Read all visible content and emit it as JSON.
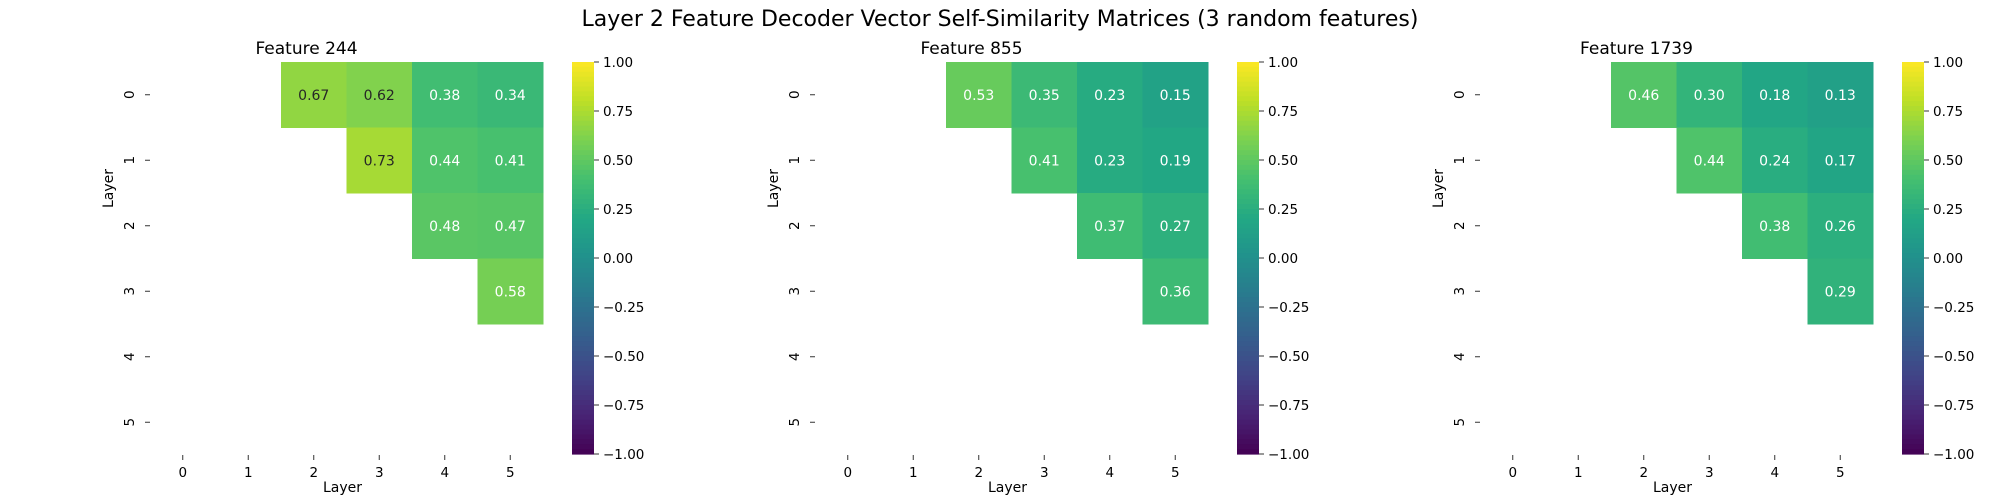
{
  "figure": {
    "title": "Layer 2 Feature Decoder Vector Self-Similarity Matrices (3 random features)"
  },
  "colors": {
    "colormap": "viridis",
    "text_dark": "#262626",
    "text_light": "#ffffff"
  },
  "chart_data": [
    {
      "type": "heatmap",
      "title": "Feature 244",
      "xlabel": "Layer",
      "ylabel": "Layer",
      "x_ticks": [
        "0",
        "1",
        "2",
        "3",
        "4",
        "5"
      ],
      "y_ticks": [
        "0",
        "1",
        "2",
        "3",
        "4",
        "5"
      ],
      "mask": "lower-triangle-and-diagonal",
      "vmin": -1.0,
      "vmax": 1.0,
      "colorbar_ticks": [
        "1.00",
        "0.75",
        "0.50",
        "0.25",
        "0.00",
        "−0.25",
        "−0.50",
        "−0.75",
        "−1.00"
      ],
      "matrix": [
        [
          null,
          null,
          0.67,
          0.62,
          0.38,
          0.34
        ],
        [
          null,
          null,
          null,
          0.73,
          0.44,
          0.41
        ],
        [
          null,
          null,
          null,
          null,
          0.48,
          0.47
        ],
        [
          null,
          null,
          null,
          null,
          null,
          0.58
        ],
        [
          null,
          null,
          null,
          null,
          null,
          null
        ],
        [
          null,
          null,
          null,
          null,
          null,
          null
        ]
      ],
      "labels": [
        [
          null,
          null,
          "0.67",
          "0.62",
          "0.38",
          "0.34"
        ],
        [
          null,
          null,
          null,
          "0.73",
          "0.44",
          "0.41"
        ],
        [
          null,
          null,
          null,
          null,
          "0.48",
          "0.47"
        ],
        [
          null,
          null,
          null,
          null,
          null,
          "0.58"
        ],
        [
          null,
          null,
          null,
          null,
          null,
          null
        ],
        [
          null,
          null,
          null,
          null,
          null,
          null
        ]
      ]
    },
    {
      "type": "heatmap",
      "title": "Feature 855",
      "xlabel": "Layer",
      "ylabel": "Layer",
      "x_ticks": [
        "0",
        "1",
        "2",
        "3",
        "4",
        "5"
      ],
      "y_ticks": [
        "0",
        "1",
        "2",
        "3",
        "4",
        "5"
      ],
      "mask": "lower-triangle-and-diagonal",
      "vmin": -1.0,
      "vmax": 1.0,
      "colorbar_ticks": [
        "1.00",
        "0.75",
        "0.50",
        "0.25",
        "0.00",
        "−0.25",
        "−0.50",
        "−0.75",
        "−1.00"
      ],
      "matrix": [
        [
          null,
          null,
          0.53,
          0.35,
          0.23,
          0.15
        ],
        [
          null,
          null,
          null,
          0.41,
          0.23,
          0.19
        ],
        [
          null,
          null,
          null,
          null,
          0.37,
          0.27
        ],
        [
          null,
          null,
          null,
          null,
          null,
          0.36
        ],
        [
          null,
          null,
          null,
          null,
          null,
          null
        ],
        [
          null,
          null,
          null,
          null,
          null,
          null
        ]
      ],
      "labels": [
        [
          null,
          null,
          "0.53",
          "0.35",
          "0.23",
          "0.15"
        ],
        [
          null,
          null,
          null,
          "0.41",
          "0.23",
          "0.19"
        ],
        [
          null,
          null,
          null,
          null,
          "0.37",
          "0.27"
        ],
        [
          null,
          null,
          null,
          null,
          null,
          "0.36"
        ],
        [
          null,
          null,
          null,
          null,
          null,
          null
        ],
        [
          null,
          null,
          null,
          null,
          null,
          null
        ]
      ]
    },
    {
      "type": "heatmap",
      "title": "Feature 1739",
      "xlabel": "Layer",
      "ylabel": "Layer",
      "x_ticks": [
        "0",
        "1",
        "2",
        "3",
        "4",
        "5"
      ],
      "y_ticks": [
        "0",
        "1",
        "2",
        "3",
        "4",
        "5"
      ],
      "mask": "lower-triangle-and-diagonal",
      "vmin": -1.0,
      "vmax": 1.0,
      "colorbar_ticks": [
        "1.00",
        "0.75",
        "0.50",
        "0.25",
        "0.00",
        "−0.25",
        "−0.50",
        "−0.75",
        "−1.00"
      ],
      "matrix": [
        [
          null,
          null,
          0.46,
          0.3,
          0.18,
          0.13
        ],
        [
          null,
          null,
          null,
          0.44,
          0.24,
          0.17
        ],
        [
          null,
          null,
          null,
          null,
          0.38,
          0.26
        ],
        [
          null,
          null,
          null,
          null,
          null,
          0.29
        ],
        [
          null,
          null,
          null,
          null,
          null,
          null
        ],
        [
          null,
          null,
          null,
          null,
          null,
          null
        ]
      ],
      "labels": [
        [
          null,
          null,
          "0.46",
          "0.30",
          "0.18",
          "0.13"
        ],
        [
          null,
          null,
          null,
          "0.44",
          "0.24",
          "0.17"
        ],
        [
          null,
          null,
          null,
          null,
          "0.38",
          "0.26"
        ],
        [
          null,
          null,
          null,
          null,
          null,
          "0.29"
        ],
        [
          null,
          null,
          null,
          null,
          null,
          null
        ],
        [
          null,
          null,
          null,
          null,
          null,
          null
        ]
      ]
    }
  ]
}
